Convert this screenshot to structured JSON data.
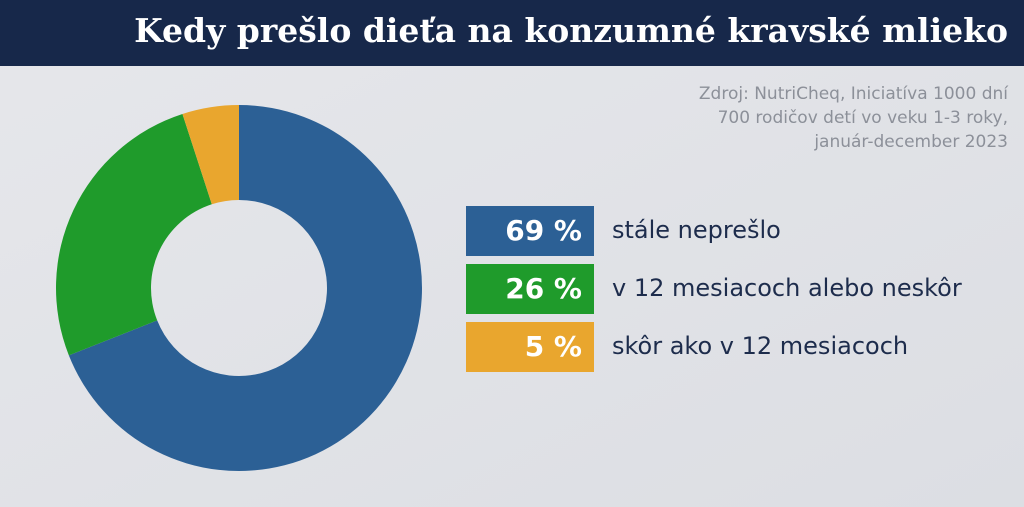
{
  "chart_data": {
    "type": "donut",
    "title": "Kedy prešlo dieťa na konzumné kravské mlieko",
    "source": [
      "Zdroj: NutriCheq, Iniciatíva 1000 dní",
      "700 rodičov detí vo veku 1-3 roky,",
      "január-december 2023"
    ],
    "categories": [
      "stále neprešlo",
      "v 12 mesiacoch alebo neskôr",
      "skôr ako v 12 mesiacoch"
    ],
    "values": [
      69,
      26,
      5
    ],
    "value_labels": [
      "69 %",
      "26 %",
      "5 %"
    ],
    "colors": [
      "#2c6095",
      "#1f9b2b",
      "#e9a62e"
    ]
  }
}
